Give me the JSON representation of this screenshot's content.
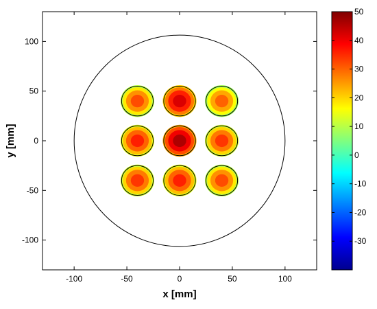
{
  "chart_data": {
    "type": "heatmap",
    "title": "",
    "xlabel": "x [mm]",
    "ylabel": "y [mm]",
    "xlim": [
      -130,
      130
    ],
    "ylim": [
      -130,
      130
    ],
    "xticks": [
      -100,
      -50,
      0,
      50,
      100
    ],
    "yticks": [
      -100,
      -50,
      0,
      50,
      100
    ],
    "grid": false,
    "outer_circle": {
      "center": [
        0,
        0
      ],
      "radius": 100
    },
    "spot_radius": 15,
    "spots": [
      {
        "x": -40,
        "y": 40,
        "value": 32
      },
      {
        "x": 0,
        "y": 40,
        "value": 42
      },
      {
        "x": 40,
        "y": 40,
        "value": 30
      },
      {
        "x": -40,
        "y": 0,
        "value": 36
      },
      {
        "x": 0,
        "y": 0,
        "value": 46
      },
      {
        "x": 40,
        "y": 0,
        "value": 34
      },
      {
        "x": -40,
        "y": -40,
        "value": 34
      },
      {
        "x": 0,
        "y": -40,
        "value": 36
      },
      {
        "x": 40,
        "y": -40,
        "value": 32
      }
    ],
    "colorbar": {
      "colormap": "jet",
      "range": [
        -40,
        50
      ],
      "ticks": [
        -30,
        -20,
        -10,
        0,
        10,
        20,
        30,
        40,
        50
      ]
    }
  }
}
